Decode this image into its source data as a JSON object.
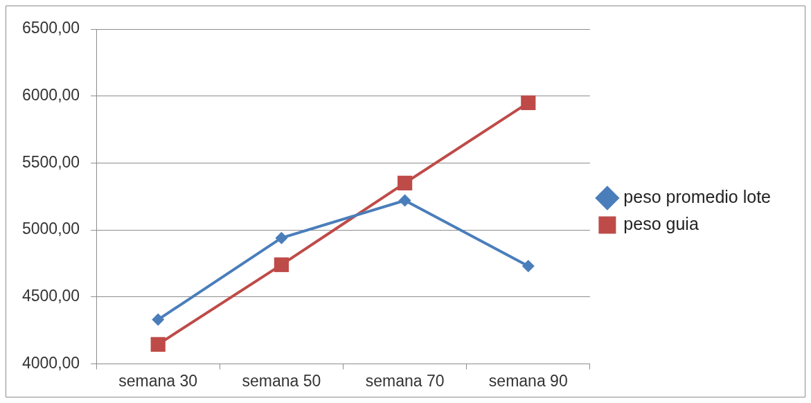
{
  "chart_data": {
    "type": "line",
    "categories": [
      "semana 30",
      "semana 50",
      "semana 70",
      "semana 90"
    ],
    "series": [
      {
        "name": "peso promedio lote",
        "color": "#4a7ebb",
        "marker": "diamond",
        "values": [
          4330,
          4940,
          5220,
          4730
        ]
      },
      {
        "name": "peso guia",
        "color": "#be4b48",
        "marker": "square",
        "values": [
          4145,
          4740,
          5350,
          5950
        ]
      }
    ],
    "ylim": [
      4000,
      6500
    ],
    "yticks": [
      {
        "value": 4000,
        "label": "4000,00"
      },
      {
        "value": 4500,
        "label": "4500,00"
      },
      {
        "value": 5000,
        "label": "5000,00"
      },
      {
        "value": 5500,
        "label": "5500,00"
      },
      {
        "value": 6000,
        "label": "6000,00"
      },
      {
        "value": 6500,
        "label": "6500,00"
      }
    ],
    "grid": "y",
    "legend": "right",
    "line_style": "solid"
  }
}
